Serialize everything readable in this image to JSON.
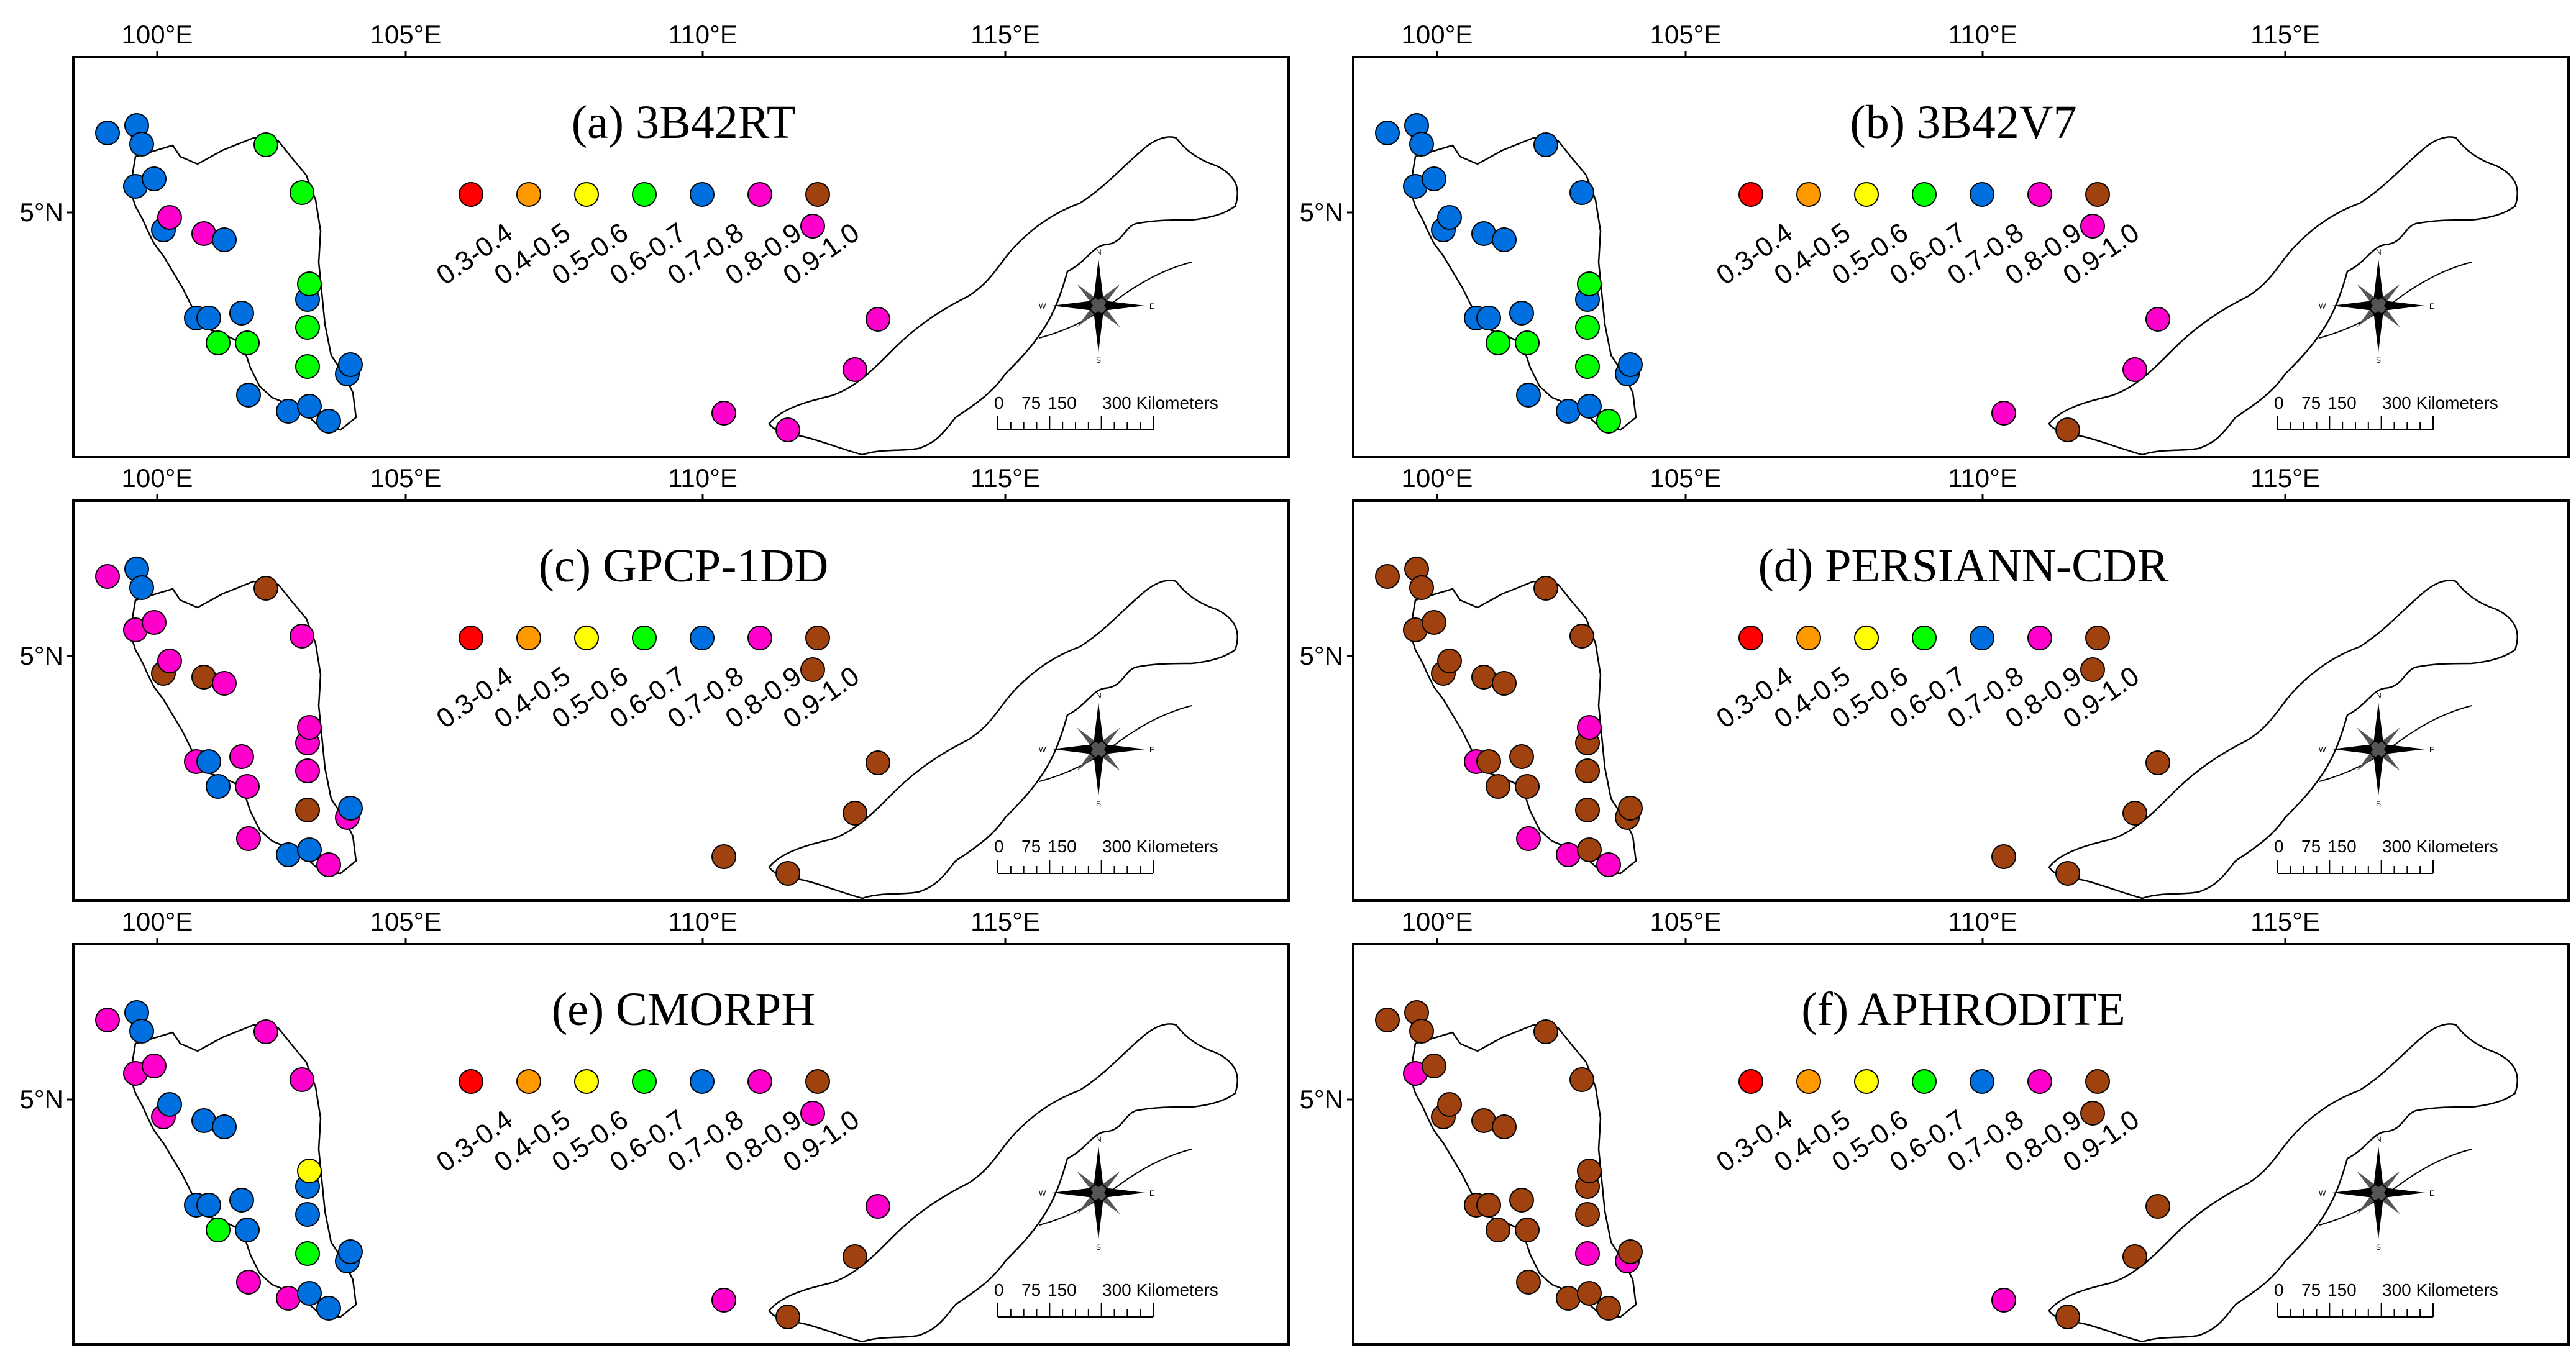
{
  "figure": {
    "legend_title": "",
    "lon_labels": [
      "100°E",
      "105°E",
      "110°E",
      "115°E"
    ],
    "lat_label": "5°N",
    "scale_labels": [
      "0",
      "75",
      "150",
      "300 Kilometers"
    ],
    "compass_letters": [
      "N",
      "E",
      "S",
      "W"
    ]
  },
  "legend": {
    "classes": [
      {
        "label": "0.3-0.4",
        "color": "#ff0000"
      },
      {
        "label": "0.4-0.5",
        "color": "#ff9900"
      },
      {
        "label": "0.5-0.6",
        "color": "#ffff00"
      },
      {
        "label": "0.6-0.7",
        "color": "#00ff00"
      },
      {
        "label": "0.7-0.8",
        "color": "#0070e0"
      },
      {
        "label": "0.8-0.9",
        "color": "#ff00cc"
      },
      {
        "label": "0.9-1.0",
        "color": "#a0420f"
      }
    ]
  },
  "station_count": 31,
  "chart_data": [
    {
      "type": "scatter",
      "title": "(a) 3B42RT",
      "classes": [
        4,
        4,
        4,
        4,
        4,
        4,
        3,
        3,
        5,
        5,
        4,
        4,
        3,
        4,
        4,
        3,
        4,
        4,
        4,
        4,
        4,
        3,
        3,
        3,
        4,
        4,
        5,
        5,
        5,
        5,
        5
      ]
    },
    {
      "type": "scatter",
      "title": "(b) 3B42V7",
      "classes": [
        4,
        4,
        4,
        4,
        4,
        4,
        4,
        4,
        4,
        4,
        4,
        4,
        3,
        4,
        4,
        3,
        4,
        4,
        4,
        3,
        4,
        3,
        3,
        3,
        4,
        4,
        5,
        5,
        5,
        5,
        6
      ]
    },
    {
      "type": "scatter",
      "title": "(c) GPCP-1DD",
      "classes": [
        5,
        4,
        4,
        5,
        5,
        6,
        6,
        5,
        5,
        6,
        5,
        5,
        5,
        5,
        4,
        4,
        5,
        4,
        4,
        5,
        5,
        5,
        5,
        6,
        5,
        4,
        6,
        6,
        6,
        6,
        6
      ]
    },
    {
      "type": "scatter",
      "title": "(d) PERSIANN-CDR",
      "classes": [
        6,
        6,
        6,
        6,
        6,
        6,
        6,
        6,
        6,
        6,
        6,
        6,
        6,
        5,
        6,
        6,
        5,
        5,
        6,
        5,
        6,
        6,
        5,
        6,
        6,
        6,
        6,
        6,
        6,
        6,
        6
      ]
    },
    {
      "type": "scatter",
      "title": "(e) CMORPH",
      "classes": [
        5,
        4,
        4,
        5,
        5,
        5,
        5,
        5,
        4,
        4,
        4,
        4,
        4,
        4,
        4,
        3,
        5,
        5,
        4,
        4,
        4,
        4,
        2,
        3,
        4,
        4,
        5,
        5,
        6,
        5,
        6
      ]
    },
    {
      "type": "scatter",
      "title": "(f) APHRODITE",
      "classes": [
        6,
        6,
        6,
        5,
        6,
        6,
        6,
        6,
        6,
        6,
        6,
        6,
        6,
        6,
        6,
        6,
        6,
        6,
        6,
        6,
        6,
        6,
        6,
        5,
        5,
        6,
        6,
        6,
        6,
        5,
        6
      ]
    }
  ]
}
